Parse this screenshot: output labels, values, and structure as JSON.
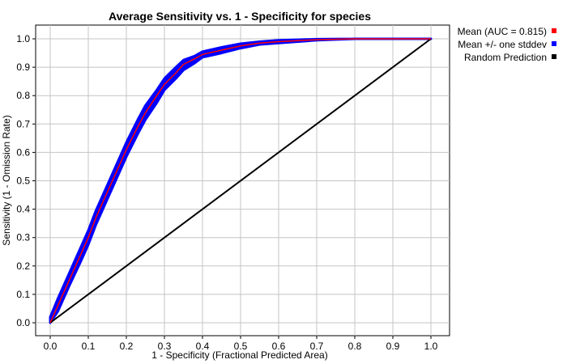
{
  "chart_data": {
    "type": "line",
    "title": "Average Sensitivity vs. 1 - Specificity for species",
    "xlabel": "1 - Specificity (Fractional Predicted Area)",
    "ylabel": "Sensitivity (1 - Omission Rate)",
    "xlim": [
      0.0,
      1.0
    ],
    "ylim": [
      0.0,
      1.0
    ],
    "xticks": [
      "0.0",
      "0.1",
      "0.2",
      "0.3",
      "0.4",
      "0.5",
      "0.6",
      "0.7",
      "0.8",
      "0.9",
      "1.0"
    ],
    "yticks": [
      "0.0",
      "0.1",
      "0.2",
      "0.3",
      "0.4",
      "0.5",
      "0.6",
      "0.7",
      "0.8",
      "0.9",
      "1.0"
    ],
    "grid": true,
    "legend_position": "top-right outside",
    "series": [
      {
        "name": "Mean (AUC = 0.815)",
        "color": "#ff0000",
        "x": [
          0.0,
          0.02,
          0.05,
          0.08,
          0.1,
          0.12,
          0.15,
          0.18,
          0.2,
          0.23,
          0.25,
          0.28,
          0.3,
          0.33,
          0.35,
          0.38,
          0.4,
          0.45,
          0.5,
          0.55,
          0.6,
          0.7,
          0.8,
          0.9,
          1.0
        ],
        "values": [
          0.0,
          0.06,
          0.15,
          0.24,
          0.3,
          0.37,
          0.46,
          0.55,
          0.61,
          0.69,
          0.74,
          0.8,
          0.84,
          0.88,
          0.91,
          0.93,
          0.945,
          0.96,
          0.975,
          0.985,
          0.99,
          0.997,
          1.0,
          1.0,
          1.0
        ]
      },
      {
        "name": "Mean +/- one stddev",
        "color": "#0000ff",
        "x": [
          0.0,
          0.02,
          0.05,
          0.08,
          0.1,
          0.12,
          0.15,
          0.18,
          0.2,
          0.23,
          0.25,
          0.28,
          0.3,
          0.33,
          0.35,
          0.38,
          0.4,
          0.45,
          0.5,
          0.55,
          0.6,
          0.7,
          0.8,
          0.9,
          1.0
        ],
        "upper": [
          0.02,
          0.085,
          0.175,
          0.265,
          0.325,
          0.395,
          0.485,
          0.575,
          0.635,
          0.715,
          0.765,
          0.82,
          0.86,
          0.9,
          0.925,
          0.94,
          0.955,
          0.97,
          0.983,
          0.99,
          0.995,
          0.999,
          1.0,
          1.0,
          1.0
        ],
        "lower": [
          0.0,
          0.04,
          0.13,
          0.215,
          0.275,
          0.345,
          0.435,
          0.525,
          0.585,
          0.665,
          0.715,
          0.775,
          0.82,
          0.86,
          0.89,
          0.915,
          0.935,
          0.95,
          0.967,
          0.98,
          0.985,
          0.995,
          1.0,
          1.0,
          1.0
        ]
      },
      {
        "name": "Random Prediction",
        "color": "#000000",
        "x": [
          0.0,
          1.0
        ],
        "values": [
          0.0,
          1.0
        ]
      }
    ]
  }
}
